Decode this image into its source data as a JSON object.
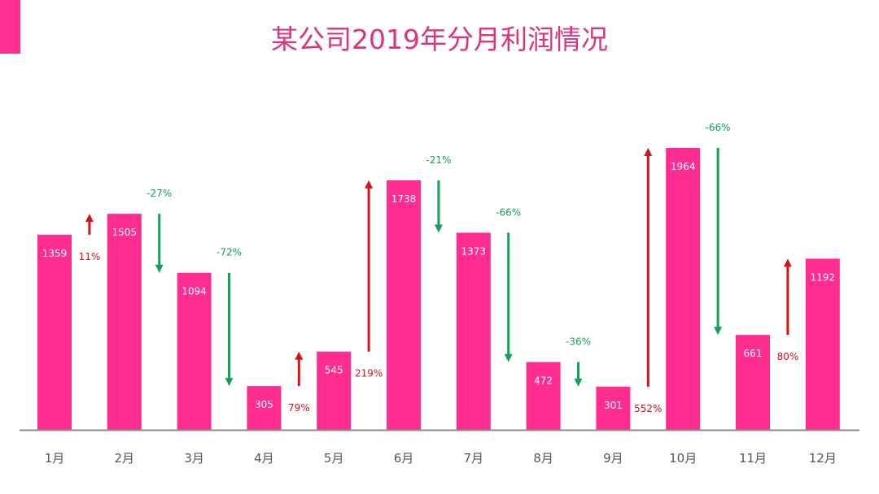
{
  "chart_data": {
    "type": "bar",
    "title": "某公司2019年分月利润情况",
    "categories": [
      "1月",
      "2月",
      "3月",
      "4月",
      "5月",
      "6月",
      "7月",
      "8月",
      "9月",
      "10月",
      "11月",
      "12月"
    ],
    "values": [
      1359,
      1505,
      1094,
      305,
      545,
      1738,
      1373,
      472,
      301,
      1964,
      661,
      1192
    ],
    "changes": [
      "11%",
      "-27%",
      "-72%",
      "79%",
      "219%",
      "-21%",
      "-66%",
      "-36%",
      "552%",
      "-66%",
      "80%"
    ],
    "ylim": [
      0,
      1964
    ],
    "grid": false,
    "legend": "none",
    "colors": {
      "bar": "#ff2d8f",
      "up": "#d0151b",
      "down": "#12a05a",
      "title": "#d9347f",
      "axis": "#8a8a8a"
    }
  }
}
